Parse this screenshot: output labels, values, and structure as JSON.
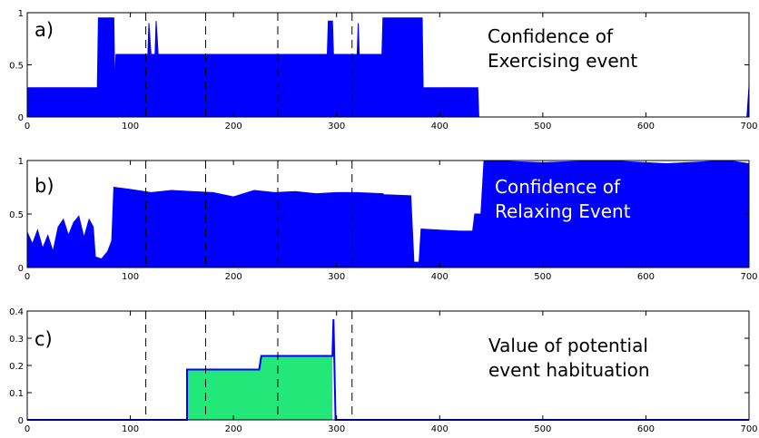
{
  "chart_data": [
    {
      "type": "area",
      "panel_label": "a)",
      "annotation": [
        "Confidence of",
        "Exercising event"
      ],
      "annotation_color": "#000000",
      "xlim": [
        0,
        700
      ],
      "ylim": [
        0,
        1
      ],
      "x_ticks": [
        0,
        100,
        200,
        300,
        400,
        500,
        600,
        700
      ],
      "y_ticks": [
        0,
        0.5,
        1
      ],
      "series_color": "#0000ff",
      "points": [
        [
          0,
          0.28
        ],
        [
          68,
          0.28
        ],
        [
          69,
          0.95
        ],
        [
          84,
          0.95
        ],
        [
          85,
          0.28
        ],
        [
          86,
          0.6
        ],
        [
          117,
          0.6
        ],
        [
          118,
          0.9
        ],
        [
          120,
          0.6
        ],
        [
          124,
          0.6
        ],
        [
          125,
          0.92
        ],
        [
          127,
          0.6
        ],
        [
          291,
          0.6
        ],
        [
          292,
          0.92
        ],
        [
          296,
          0.92
        ],
        [
          297,
          0.6
        ],
        [
          320,
          0.6
        ],
        [
          321,
          0.9
        ],
        [
          322,
          0.6
        ],
        [
          344,
          0.6
        ],
        [
          345,
          0.95
        ],
        [
          383,
          0.95
        ],
        [
          384,
          0.28
        ],
        [
          437,
          0.28
        ],
        [
          438,
          0
        ],
        [
          698,
          0
        ],
        [
          700,
          0.3
        ]
      ],
      "vlines": [
        115,
        173,
        243,
        315
      ]
    },
    {
      "type": "area",
      "panel_label": "b)",
      "annotation": [
        "Confidence of",
        "Relaxing Event"
      ],
      "annotation_color": "#ffffff",
      "xlim": [
        0,
        700
      ],
      "ylim": [
        0,
        1
      ],
      "x_ticks": [
        0,
        100,
        200,
        300,
        400,
        500,
        600,
        700
      ],
      "y_ticks": [
        0,
        0.5,
        1
      ],
      "series_color": "#0000ff",
      "points": [
        [
          0,
          0.33
        ],
        [
          5,
          0.22
        ],
        [
          10,
          0.35
        ],
        [
          15,
          0.18
        ],
        [
          20,
          0.3
        ],
        [
          25,
          0.15
        ],
        [
          30,
          0.38
        ],
        [
          35,
          0.45
        ],
        [
          40,
          0.3
        ],
        [
          45,
          0.42
        ],
        [
          50,
          0.48
        ],
        [
          55,
          0.28
        ],
        [
          60,
          0.45
        ],
        [
          64,
          0.38
        ],
        [
          66,
          0.1
        ],
        [
          72,
          0.08
        ],
        [
          78,
          0.15
        ],
        [
          82,
          0.25
        ],
        [
          84,
          0.75
        ],
        [
          100,
          0.73
        ],
        [
          120,
          0.7
        ],
        [
          140,
          0.72
        ],
        [
          160,
          0.71
        ],
        [
          180,
          0.7
        ],
        [
          200,
          0.66
        ],
        [
          220,
          0.72
        ],
        [
          240,
          0.7
        ],
        [
          260,
          0.71
        ],
        [
          280,
          0.69
        ],
        [
          300,
          0.7
        ],
        [
          320,
          0.7
        ],
        [
          345,
          0.69
        ],
        [
          346,
          0.68
        ],
        [
          372,
          0.67
        ],
        [
          375,
          0.05
        ],
        [
          380,
          0.05
        ],
        [
          382,
          0.36
        ],
        [
          400,
          0.35
        ],
        [
          420,
          0.34
        ],
        [
          432,
          0.34
        ],
        [
          434,
          0.5
        ],
        [
          440,
          0.5
        ],
        [
          443,
          1.0
        ],
        [
          500,
          0.98
        ],
        [
          560,
          1.0
        ],
        [
          620,
          0.97
        ],
        [
          680,
          1.0
        ],
        [
          700,
          0.97
        ]
      ],
      "vlines": [
        115,
        173,
        243,
        315
      ]
    },
    {
      "type": "area",
      "panel_label": "c)",
      "annotation": [
        "Value of potential",
        "event habituation"
      ],
      "annotation_color": "#000000",
      "xlim": [
        0,
        700
      ],
      "ylim": [
        0,
        0.4
      ],
      "x_ticks": [
        0,
        100,
        200,
        300,
        400,
        500,
        600,
        700
      ],
      "y_ticks": [
        0,
        0.1,
        0.2,
        0.3,
        0.4
      ],
      "series_color": "#0000ff",
      "fill_color": "#22e87a",
      "fill_range": [
        155,
        296
      ],
      "points": [
        [
          0,
          0
        ],
        [
          155,
          0
        ],
        [
          155,
          0.185
        ],
        [
          225,
          0.185
        ],
        [
          227,
          0.235
        ],
        [
          296,
          0.235
        ],
        [
          297,
          0.37
        ],
        [
          299,
          0
        ],
        [
          700,
          0
        ]
      ],
      "vlines": [
        115,
        173,
        243,
        315
      ]
    }
  ]
}
